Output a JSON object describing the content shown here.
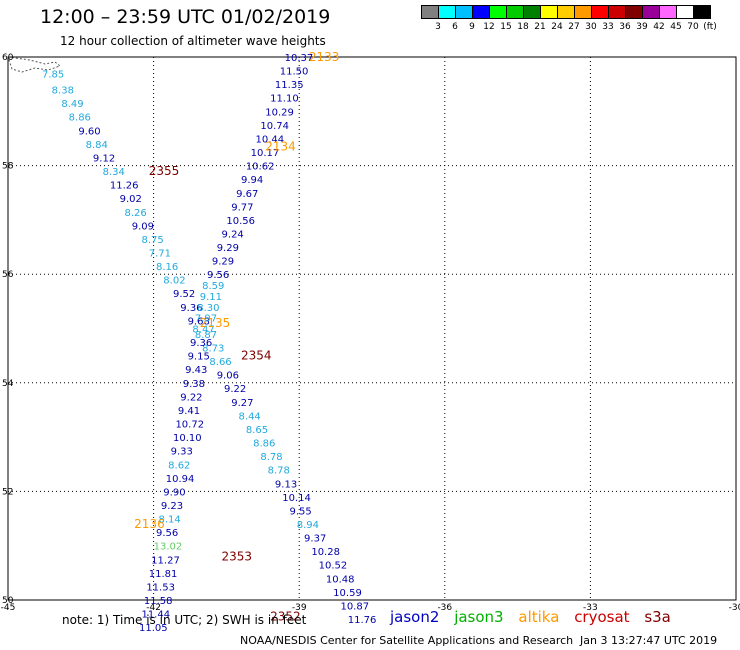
{
  "header": {
    "title": "12:00 – 23:59 UTC 01/02/2019",
    "subtitle": "12 hour collection of altimeter wave heights"
  },
  "colorbar": {
    "unit": "(ft)",
    "colors": [
      "#808080",
      "#00ffff",
      "#00bfff",
      "#0000ff",
      "#00ff00",
      "#00cc00",
      "#008000",
      "#ffff00",
      "#ffcc00",
      "#ff9900",
      "#ff0000",
      "#cc0000",
      "#800000",
      "#990099",
      "#ff66ff",
      "#ffffff",
      "#000000"
    ],
    "labels": [
      "3",
      "6",
      "9",
      "12",
      "15",
      "18",
      "21",
      "24",
      "27",
      "30",
      "33",
      "36",
      "39",
      "42",
      "45",
      "70",
      "(ft)"
    ]
  },
  "axes": {
    "lon_ticks": [
      "-45",
      "-42",
      "-39",
      "-36",
      "-33",
      "-30"
    ],
    "lat_ticks": [
      "60",
      "58",
      "56",
      "54",
      "52",
      "50"
    ]
  },
  "colors": {
    "jason2": "#0000c0",
    "jason3": "#00b000",
    "altika": "#ff9900",
    "cryosat": "#cc0000",
    "s3a": "#800000",
    "light_blue": "#22aadd",
    "dark_blue": "#0000aa",
    "green_light": "#66cc66"
  },
  "chart_data": {
    "type": "scatter",
    "title": "12 hour collection of altimeter wave heights",
    "xlim": [
      -45,
      -30
    ],
    "ylim": [
      50,
      60
    ],
    "tracks": [
      {
        "name": "track-left",
        "points": [
          {
            "lon": -44.3,
            "lat": 59.7,
            "v": "7.85",
            "c": "light_blue"
          },
          {
            "lon": -44.1,
            "lat": 59.4,
            "v": "8.38",
            "c": "light_blue"
          },
          {
            "lon": -43.9,
            "lat": 59.15,
            "v": "8.49",
            "c": "light_blue"
          },
          {
            "lon": -43.75,
            "lat": 58.9,
            "v": "8.86",
            "c": "light_blue"
          },
          {
            "lon": -43.55,
            "lat": 58.65,
            "v": "9.60",
            "c": "dark_blue"
          },
          {
            "lon": -43.4,
            "lat": 58.4,
            "v": "8.84",
            "c": "light_blue"
          },
          {
            "lon": -43.25,
            "lat": 58.15,
            "v": "9.12",
            "c": "dark_blue"
          },
          {
            "lon": -43.05,
            "lat": 57.9,
            "v": "8.34",
            "c": "light_blue"
          },
          {
            "lon": -42.9,
            "lat": 57.65,
            "v": "11.26",
            "c": "dark_blue"
          },
          {
            "lon": -42.7,
            "lat": 57.4,
            "v": "9.02",
            "c": "dark_blue"
          },
          {
            "lon": -42.6,
            "lat": 57.15,
            "v": "8.26",
            "c": "light_blue"
          },
          {
            "lon": -42.45,
            "lat": 56.9,
            "v": "9.09",
            "c": "dark_blue"
          },
          {
            "lon": -42.25,
            "lat": 56.65,
            "v": "8.75",
            "c": "light_blue"
          },
          {
            "lon": -42.1,
            "lat": 56.4,
            "v": "7.71",
            "c": "light_blue"
          },
          {
            "lon": -41.95,
            "lat": 56.15,
            "v": "8.16",
            "c": "light_blue"
          },
          {
            "lon": -41.8,
            "lat": 55.9,
            "v": "8.02",
            "c": "light_blue"
          },
          {
            "lon": -41.6,
            "lat": 55.65,
            "v": "9.52",
            "c": "dark_blue"
          },
          {
            "lon": -41.45,
            "lat": 55.4,
            "v": "9.36",
            "c": "dark_blue"
          },
          {
            "lon": -41.3,
            "lat": 55.15,
            "v": "9.68",
            "c": "dark_blue"
          },
          {
            "lon": -41.15,
            "lat": 54.9,
            "v": "8.87",
            "c": "light_blue"
          },
          {
            "lon": -41.0,
            "lat": 54.65,
            "v": "8.73",
            "c": "light_blue"
          },
          {
            "lon": -40.85,
            "lat": 54.4,
            "v": "8.66",
            "c": "light_blue"
          },
          {
            "lon": -40.7,
            "lat": 54.15,
            "v": "9.06",
            "c": "dark_blue"
          },
          {
            "lon": -40.55,
            "lat": 53.9,
            "v": "9.22",
            "c": "dark_blue"
          },
          {
            "lon": -40.4,
            "lat": 53.65,
            "v": "9.27",
            "c": "dark_blue"
          },
          {
            "lon": -40.25,
            "lat": 53.4,
            "v": "8.44",
            "c": "light_blue"
          },
          {
            "lon": -40.1,
            "lat": 53.15,
            "v": "8.65",
            "c": "light_blue"
          },
          {
            "lon": -39.95,
            "lat": 52.9,
            "v": "8.86",
            "c": "light_blue"
          },
          {
            "lon": -39.8,
            "lat": 52.65,
            "v": "8.78",
            "c": "light_blue"
          },
          {
            "lon": -39.65,
            "lat": 52.4,
            "v": "8.78",
            "c": "light_blue"
          },
          {
            "lon": -39.5,
            "lat": 52.15,
            "v": "9.13",
            "c": "dark_blue"
          },
          {
            "lon": -39.35,
            "lat": 51.9,
            "v": "10.14",
            "c": "dark_blue"
          },
          {
            "lon": -39.2,
            "lat": 51.65,
            "v": "9.55",
            "c": "dark_blue"
          },
          {
            "lon": -39.05,
            "lat": 51.4,
            "v": "8.94",
            "c": "light_blue"
          },
          {
            "lon": -38.9,
            "lat": 51.15,
            "v": "9.37",
            "c": "dark_blue"
          },
          {
            "lon": -38.75,
            "lat": 50.9,
            "v": "10.28",
            "c": "dark_blue"
          },
          {
            "lon": -38.6,
            "lat": 50.65,
            "v": "10.52",
            "c": "dark_blue"
          },
          {
            "lon": -38.45,
            "lat": 50.4,
            "v": "10.48",
            "c": "dark_blue"
          },
          {
            "lon": -38.3,
            "lat": 50.15,
            "v": "10.59",
            "c": "dark_blue"
          },
          {
            "lon": -38.15,
            "lat": 49.9,
            "v": "10.87",
            "c": "dark_blue"
          },
          {
            "lon": -38.0,
            "lat": 49.65,
            "v": "11.76",
            "c": "dark_blue"
          }
        ]
      },
      {
        "name": "track-right",
        "points": [
          {
            "lon": -39.3,
            "lat": 60.0,
            "v": "10.37",
            "c": "dark_blue"
          },
          {
            "lon": -39.4,
            "lat": 59.75,
            "v": "11.50",
            "c": "dark_blue"
          },
          {
            "lon": -39.5,
            "lat": 59.5,
            "v": "11.35",
            "c": "dark_blue"
          },
          {
            "lon": -39.6,
            "lat": 59.25,
            "v": "11.10",
            "c": "dark_blue"
          },
          {
            "lon": -39.7,
            "lat": 59.0,
            "v": "10.29",
            "c": "dark_blue"
          },
          {
            "lon": -39.8,
            "lat": 58.75,
            "v": "10.74",
            "c": "dark_blue"
          },
          {
            "lon": -39.9,
            "lat": 58.5,
            "v": "10.44",
            "c": "dark_blue"
          },
          {
            "lon": -40.0,
            "lat": 58.25,
            "v": "10.17",
            "c": "dark_blue"
          },
          {
            "lon": -40.1,
            "lat": 58.0,
            "v": "10.62",
            "c": "dark_blue"
          },
          {
            "lon": -40.2,
            "lat": 57.75,
            "v": "9.94",
            "c": "dark_blue"
          },
          {
            "lon": -40.3,
            "lat": 57.5,
            "v": "9.67",
            "c": "dark_blue"
          },
          {
            "lon": -40.4,
            "lat": 57.25,
            "v": "9.77",
            "c": "dark_blue"
          },
          {
            "lon": -40.5,
            "lat": 57.0,
            "v": "10.56",
            "c": "dark_blue"
          },
          {
            "lon": -40.6,
            "lat": 56.75,
            "v": "9.24",
            "c": "dark_blue"
          },
          {
            "lon": -40.7,
            "lat": 56.5,
            "v": "9.29",
            "c": "dark_blue"
          },
          {
            "lon": -40.8,
            "lat": 56.25,
            "v": "9.29",
            "c": "dark_blue"
          },
          {
            "lon": -40.9,
            "lat": 56.0,
            "v": "9.56",
            "c": "dark_blue"
          },
          {
            "lon": -41.0,
            "lat": 55.8,
            "v": "8.59",
            "c": "light_blue"
          },
          {
            "lon": -41.05,
            "lat": 55.6,
            "v": "9.11",
            "c": "light_blue"
          },
          {
            "lon": -41.1,
            "lat": 55.4,
            "v": "8.30",
            "c": "light_blue"
          },
          {
            "lon": -41.15,
            "lat": 55.2,
            "v": "7.97",
            "c": "light_blue"
          },
          {
            "lon": -41.2,
            "lat": 55.0,
            "v": "8.47",
            "c": "light_blue"
          },
          {
            "lon": -41.25,
            "lat": 54.75,
            "v": "9.36",
            "c": "dark_blue"
          },
          {
            "lon": -41.3,
            "lat": 54.5,
            "v": "9.15",
            "c": "dark_blue"
          },
          {
            "lon": -41.35,
            "lat": 54.25,
            "v": "9.43",
            "c": "dark_blue"
          },
          {
            "lon": -41.4,
            "lat": 54.0,
            "v": "9.38",
            "c": "dark_blue"
          },
          {
            "lon": -41.45,
            "lat": 53.75,
            "v": "9.22",
            "c": "dark_blue"
          },
          {
            "lon": -41.5,
            "lat": 53.5,
            "v": "9.41",
            "c": "dark_blue"
          },
          {
            "lon": -41.55,
            "lat": 53.25,
            "v": "10.72",
            "c": "dark_blue"
          },
          {
            "lon": -41.6,
            "lat": 53.0,
            "v": "10.10",
            "c": "dark_blue"
          },
          {
            "lon": -41.65,
            "lat": 52.75,
            "v": "9.33",
            "c": "dark_blue"
          },
          {
            "lon": -41.7,
            "lat": 52.5,
            "v": "8.62",
            "c": "light_blue"
          },
          {
            "lon": -41.75,
            "lat": 52.25,
            "v": "10.94",
            "c": "dark_blue"
          },
          {
            "lon": -41.8,
            "lat": 52.0,
            "v": "9.90",
            "c": "dark_blue"
          },
          {
            "lon": -41.85,
            "lat": 51.75,
            "v": "9.23",
            "c": "dark_blue"
          },
          {
            "lon": -41.9,
            "lat": 51.5,
            "v": "8.14",
            "c": "light_blue"
          },
          {
            "lon": -41.95,
            "lat": 51.25,
            "v": "9.56",
            "c": "dark_blue"
          },
          {
            "lon": -42.0,
            "lat": 51.0,
            "v": "13.02",
            "c": "green_light"
          },
          {
            "lon": -42.05,
            "lat": 50.75,
            "v": "11.27",
            "c": "dark_blue"
          },
          {
            "lon": -42.1,
            "lat": 50.5,
            "v": "11.81",
            "c": "dark_blue"
          },
          {
            "lon": -42.15,
            "lat": 50.25,
            "v": "11.53",
            "c": "dark_blue"
          },
          {
            "lon": -42.2,
            "lat": 50.0,
            "v": "11.58",
            "c": "dark_blue"
          },
          {
            "lon": -42.25,
            "lat": 49.75,
            "v": "11.44",
            "c": "dark_blue"
          },
          {
            "lon": -42.3,
            "lat": 49.5,
            "v": "11.05",
            "c": "dark_blue"
          }
        ]
      }
    ],
    "time_labels": [
      {
        "lon": -38.8,
        "lat": 60.0,
        "text": "2133",
        "c": "altika"
      },
      {
        "lon": -39.7,
        "lat": 58.35,
        "text": "2134",
        "c": "altika"
      },
      {
        "lon": -41.05,
        "lat": 55.1,
        "text": "2135",
        "c": "altika"
      },
      {
        "lon": -42.4,
        "lat": 51.4,
        "text": "2136",
        "c": "altika"
      },
      {
        "lon": -42.1,
        "lat": 57.9,
        "text": "2355",
        "c": "s3a"
      },
      {
        "lon": -40.2,
        "lat": 54.5,
        "text": "2354",
        "c": "s3a"
      },
      {
        "lon": -40.6,
        "lat": 50.8,
        "text": "2353",
        "c": "s3a"
      },
      {
        "lon": -39.6,
        "lat": 49.7,
        "text": "2352",
        "c": "s3a"
      }
    ]
  },
  "footer": {
    "note": "note:  1) Time is in UTC;  2) SWH is in feet",
    "credit": "NOAA/NESDIS Center for Satellite Applications and Research",
    "timestamp": "Jan  3 13:27:47 UTC 2019"
  },
  "legend": {
    "jason2": "jason2",
    "jason3": "jason3",
    "altika": "altika",
    "cryosat": "cryosat",
    "s3a": "s3a"
  }
}
